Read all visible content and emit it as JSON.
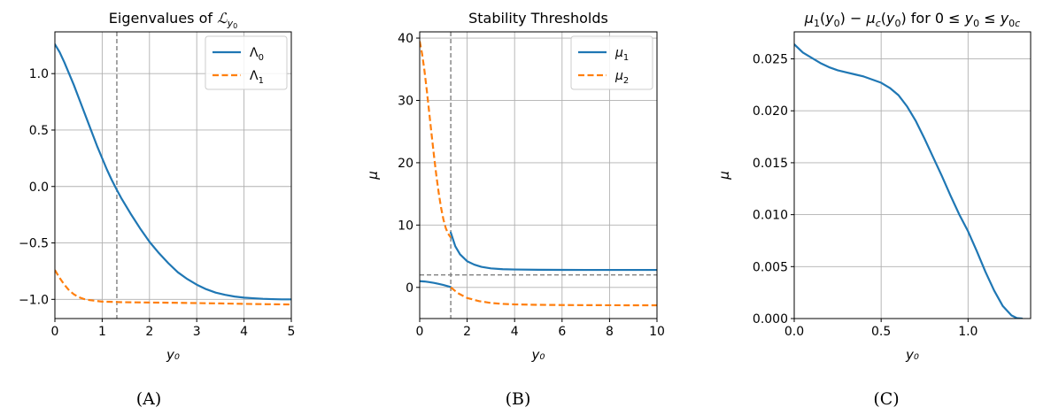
{
  "figure": {
    "panel_labels": [
      "(A)",
      "(B)",
      "(C)"
    ]
  },
  "chart_data": [
    {
      "type": "line",
      "title": "Eigenvalues of 𝓛_{y_0}",
      "title_main": "Eigenvalues of ",
      "title_script": "ℒ",
      "title_sub": "y",
      "title_subsub": "0",
      "xlabel": "y₀",
      "ylabel": "",
      "xlim": [
        0,
        5
      ],
      "ylim": [
        -1.17,
        1.37
      ],
      "xticks": [
        0,
        1,
        2,
        3,
        4,
        5
      ],
      "xtick_labels": [
        "0",
        "1",
        "2",
        "3",
        "4",
        "5"
      ],
      "yticks": [
        -1.0,
        -0.5,
        0.0,
        0.5,
        1.0
      ],
      "ytick_labels": [
        "−1.0",
        "−0.5",
        "0.0",
        "0.5",
        "1.0"
      ],
      "grid": true,
      "legend_position": "top-right",
      "vlines": [
        1.31
      ],
      "hlines": [],
      "series": [
        {
          "name": "Λ₀",
          "name_base": "Λ",
          "name_sub": "0",
          "color": "#1f77b4",
          "style": "solid",
          "x": [
            0,
            0.1,
            0.2,
            0.3,
            0.4,
            0.5,
            0.6,
            0.7,
            0.8,
            0.9,
            1.0,
            1.1,
            1.2,
            1.31,
            1.4,
            1.6,
            1.8,
            2.0,
            2.2,
            2.4,
            2.6,
            2.8,
            3.0,
            3.2,
            3.4,
            3.6,
            3.8,
            4.0,
            4.2,
            4.4,
            4.6,
            4.8,
            5.0
          ],
          "y": [
            1.26,
            1.19,
            1.1,
            1.0,
            0.9,
            0.79,
            0.68,
            0.57,
            0.46,
            0.35,
            0.25,
            0.15,
            0.06,
            -0.03,
            -0.1,
            -0.24,
            -0.37,
            -0.49,
            -0.59,
            -0.68,
            -0.76,
            -0.82,
            -0.87,
            -0.91,
            -0.94,
            -0.96,
            -0.975,
            -0.985,
            -0.99,
            -0.995,
            -0.998,
            -1.0,
            -1.0
          ]
        },
        {
          "name": "Λ₁",
          "name_base": "Λ",
          "name_sub": "1",
          "color": "#ff7f0e",
          "style": "dashed",
          "x": [
            0,
            0.1,
            0.2,
            0.3,
            0.4,
            0.5,
            0.6,
            0.7,
            0.8,
            0.9,
            1.0,
            1.2,
            1.4,
            1.6,
            2.0,
            2.5,
            3.0,
            3.5,
            4.0,
            4.5,
            5.0
          ],
          "y": [
            -0.74,
            -0.81,
            -0.87,
            -0.92,
            -0.955,
            -0.98,
            -0.995,
            -1.005,
            -1.01,
            -1.015,
            -1.02,
            -1.022,
            -1.025,
            -1.026,
            -1.028,
            -1.03,
            -1.033,
            -1.036,
            -1.04,
            -1.043,
            -1.045
          ]
        }
      ]
    },
    {
      "type": "line",
      "title": "Stability Thresholds",
      "xlabel": "y₀",
      "ylabel": "μ",
      "xlim": [
        0,
        10
      ],
      "ylim": [
        -5,
        41
      ],
      "xticks": [
        0,
        2,
        4,
        6,
        8,
        10
      ],
      "xtick_labels": [
        "0",
        "2",
        "4",
        "6",
        "8",
        "10"
      ],
      "yticks": [
        0,
        10,
        20,
        30,
        40
      ],
      "ytick_labels": [
        "0",
        "10",
        "20",
        "30",
        "40"
      ],
      "grid": true,
      "legend_position": "top-right",
      "vlines": [
        1.31
      ],
      "hlines": [
        2.0
      ],
      "series": [
        {
          "name": "μ₁",
          "name_base": "μ",
          "name_sub": "1",
          "color": "#1f77b4",
          "style": "solid",
          "segments": [
            {
              "x": [
                0,
                0.2,
                0.4,
                0.6,
                0.8,
                1.0,
                1.2,
                1.31
              ],
              "y": [
                1.0,
                0.95,
                0.85,
                0.72,
                0.56,
                0.38,
                0.18,
                0.05
              ]
            },
            {
              "x": [
                1.31,
                1.5,
                1.7,
                2.0,
                2.3,
                2.6,
                3.0,
                3.5,
                4.0,
                5.0,
                6.0,
                7.0,
                8.0,
                9.0,
                10.0
              ],
              "y": [
                8.8,
                6.6,
                5.3,
                4.2,
                3.65,
                3.3,
                3.05,
                2.92,
                2.87,
                2.83,
                2.81,
                2.8,
                2.8,
                2.8,
                2.8
              ]
            }
          ]
        },
        {
          "name": "μ₂",
          "name_base": "μ",
          "name_sub": "2",
          "color": "#ff7f0e",
          "style": "dashed",
          "segments": [
            {
              "x": [
                0,
                0.1,
                0.2,
                0.3,
                0.4,
                0.5,
                0.6,
                0.7,
                0.8,
                0.9,
                1.0,
                1.1,
                1.2,
                1.31
              ],
              "y": [
                39.5,
                37.5,
                34.8,
                31.6,
                28.1,
                24.6,
                21.2,
                18.0,
                15.2,
                12.8,
                10.9,
                9.5,
                8.6,
                8.0
              ]
            },
            {
              "x": [
                1.31,
                1.6,
                2.0,
                2.5,
                3.0,
                3.5,
                4.0,
                5.0,
                6.0,
                7.0,
                8.0,
                9.0,
                10.0
              ],
              "y": [
                0.0,
                -0.9,
                -1.7,
                -2.2,
                -2.5,
                -2.65,
                -2.73,
                -2.8,
                -2.83,
                -2.85,
                -2.86,
                -2.87,
                -2.87
              ]
            }
          ]
        }
      ]
    },
    {
      "type": "line",
      "title": "μ₁(y₀) − μ_c(y₀) for 0 ≤ y₀ ≤ y₀c",
      "xlabel": "y₀",
      "ylabel": "μ",
      "xlim": [
        0,
        1.36
      ],
      "ylim": [
        0,
        0.0276
      ],
      "xticks": [
        0,
        0.5,
        1.0
      ],
      "xtick_labels": [
        "0.0",
        "0.5",
        "1.0"
      ],
      "yticks": [
        0,
        0.005,
        0.01,
        0.015,
        0.02,
        0.025
      ],
      "ytick_labels": [
        "0.000",
        "0.005",
        "0.010",
        "0.015",
        "0.020",
        "0.025"
      ],
      "grid": true,
      "legend_position": "none",
      "vlines": [],
      "hlines": [],
      "series": [
        {
          "color": "#1f77b4",
          "style": "solid",
          "x": [
            0,
            0.05,
            0.1,
            0.15,
            0.2,
            0.25,
            0.3,
            0.35,
            0.4,
            0.45,
            0.5,
            0.55,
            0.6,
            0.65,
            0.7,
            0.75,
            0.8,
            0.85,
            0.9,
            0.95,
            1.0,
            1.05,
            1.1,
            1.15,
            1.2,
            1.25,
            1.28,
            1.31
          ],
          "y": [
            0.0264,
            0.0256,
            0.0251,
            0.0246,
            0.0242,
            0.0239,
            0.0237,
            0.0235,
            0.0233,
            0.023,
            0.0227,
            0.0222,
            0.0215,
            0.0204,
            0.019,
            0.0173,
            0.0155,
            0.0137,
            0.0118,
            0.01,
            0.0084,
            0.0065,
            0.0045,
            0.0027,
            0.0012,
            0.0003,
            5e-05,
            0.0
          ]
        }
      ]
    }
  ]
}
